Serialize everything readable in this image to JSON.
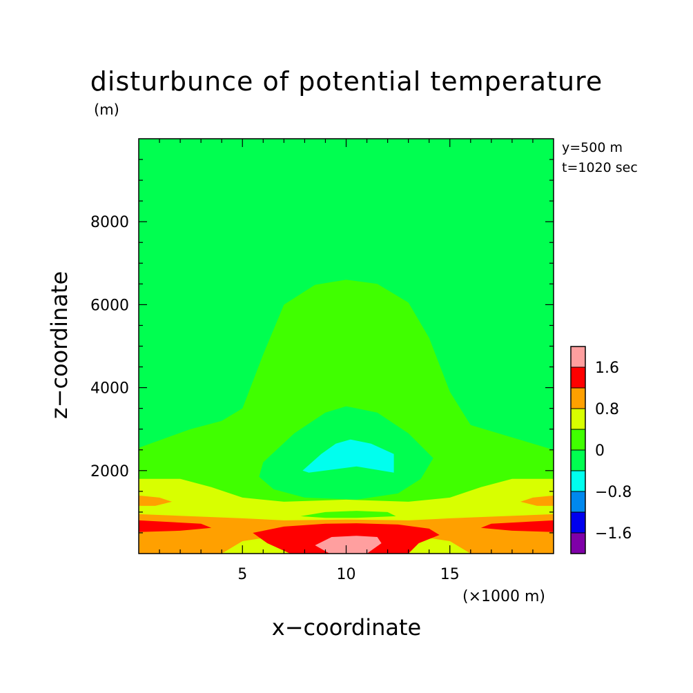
{
  "chart_data": {
    "type": "heatmap",
    "title": "disturbunce of potential temperature",
    "z_unit": "(m)",
    "xlabel": "x−coordinate",
    "ylabel": "z−coordinate",
    "x_unit": "(×1000 m)",
    "annotations": [
      "y=500 m",
      "t=1020 sec"
    ],
    "xlim": [
      0,
      20
    ],
    "ylim": [
      0,
      10000
    ],
    "x_ticks": [
      5,
      10,
      15
    ],
    "y_ticks": [
      2000,
      4000,
      6000,
      8000
    ],
    "colorbar": {
      "levels": [
        -2.0,
        -1.6,
        -1.2,
        -0.8,
        -0.4,
        0,
        0.4,
        0.8,
        1.2,
        1.6,
        2.0
      ],
      "colors": [
        "#7f00a8",
        "#0000ee",
        "#0088ee",
        "#00ffee",
        "#00ff50",
        "#40ff00",
        "#d8ff00",
        "#ffa000",
        "#ff0000",
        "#ff9f9f"
      ],
      "tick_labels": [
        "−1.6",
        "−0.8",
        "0",
        "0.8",
        "1.6"
      ],
      "tick_values": [
        -1.6,
        -0.8,
        0,
        0.8,
        1.6
      ]
    },
    "regions": [
      {
        "name": "background",
        "level_range": [
          0,
          0.4
        ],
        "color": "#00ff50"
      },
      {
        "name": "dome",
        "level_range": [
          0.4,
          0.8
        ],
        "color": "#40ff00",
        "points": [
          [
            0,
            0
          ],
          [
            0,
            2550
          ],
          [
            2.5,
            3000
          ],
          [
            4,
            3200
          ],
          [
            5,
            3500
          ],
          [
            6,
            4800
          ],
          [
            7,
            6000
          ],
          [
            8.5,
            6480
          ],
          [
            10,
            6600
          ],
          [
            11.5,
            6500
          ],
          [
            13,
            6050
          ],
          [
            14,
            5200
          ],
          [
            15,
            3900
          ],
          [
            16,
            3100
          ],
          [
            18,
            2800
          ],
          [
            20,
            2500
          ],
          [
            20,
            0
          ]
        ]
      },
      {
        "name": "inner-green",
        "level_range": [
          0,
          0.4
        ],
        "color": "#00ff50",
        "points": [
          [
            6,
            2200
          ],
          [
            7.5,
            2900
          ],
          [
            9,
            3400
          ],
          [
            10,
            3550
          ],
          [
            11.5,
            3400
          ],
          [
            13,
            2900
          ],
          [
            14.2,
            2300
          ],
          [
            13.6,
            1800
          ],
          [
            12.5,
            1450
          ],
          [
            10.5,
            1300
          ],
          [
            8,
            1350
          ],
          [
            6.5,
            1550
          ],
          [
            5.8,
            1850
          ]
        ]
      },
      {
        "name": "cold-core",
        "level_range": [
          -0.8,
          -0.4
        ],
        "color": "#00ffee",
        "points": [
          [
            7.9,
            2000
          ],
          [
            8.8,
            2400
          ],
          [
            9.5,
            2650
          ],
          [
            10.2,
            2750
          ],
          [
            11.2,
            2650
          ],
          [
            12.3,
            2400
          ],
          [
            12.3,
            1950
          ],
          [
            10.5,
            2100
          ],
          [
            8.2,
            1950
          ]
        ]
      },
      {
        "name": "yellow-band",
        "level_range": [
          0.8,
          1.2
        ],
        "color": "#d8ff00",
        "points": [
          [
            0,
            0
          ],
          [
            0,
            1800
          ],
          [
            2,
            1800
          ],
          [
            3.5,
            1600
          ],
          [
            5,
            1350
          ],
          [
            7,
            1250
          ],
          [
            10,
            1300
          ],
          [
            13,
            1250
          ],
          [
            15,
            1350
          ],
          [
            16.5,
            1600
          ],
          [
            18,
            1800
          ],
          [
            20,
            1800
          ],
          [
            20,
            0
          ]
        ]
      },
      {
        "name": "orange-band",
        "level_range": [
          1.2,
          1.6
        ],
        "color": "#ffa000",
        "points": [
          [
            0,
            0
          ],
          [
            0,
            950
          ],
          [
            2.5,
            900
          ],
          [
            5,
            850
          ],
          [
            7,
            800
          ],
          [
            10,
            820
          ],
          [
            13,
            800
          ],
          [
            15,
            850
          ],
          [
            17.5,
            900
          ],
          [
            20,
            950
          ],
          [
            20,
            0
          ],
          [
            16,
            0
          ],
          [
            15,
            300
          ],
          [
            13,
            450
          ],
          [
            10,
            450
          ],
          [
            7,
            450
          ],
          [
            5,
            300
          ],
          [
            4,
            0
          ]
        ]
      },
      {
        "name": "orange-left-lobe",
        "level_range": [
          1.2,
          1.6
        ],
        "color": "#ffa000",
        "points": [
          [
            0,
            1400
          ],
          [
            1,
            1350
          ],
          [
            1.6,
            1250
          ],
          [
            0.8,
            1150
          ],
          [
            0,
            1150
          ]
        ]
      },
      {
        "name": "orange-right-lobe",
        "level_range": [
          1.2,
          1.6
        ],
        "color": "#ffa000",
        "points": [
          [
            20,
            1400
          ],
          [
            19,
            1350
          ],
          [
            18.4,
            1250
          ],
          [
            19.2,
            1150
          ],
          [
            20,
            1150
          ]
        ]
      },
      {
        "name": "red-left-strip",
        "level_range": [
          1.6,
          2.0
        ],
        "color": "#ff0000",
        "points": [
          [
            0,
            800
          ],
          [
            3,
            720
          ],
          [
            3.5,
            620
          ],
          [
            2,
            550
          ],
          [
            0,
            520
          ]
        ]
      },
      {
        "name": "red-right-strip",
        "level_range": [
          1.6,
          2.0
        ],
        "color": "#ff0000",
        "points": [
          [
            20,
            800
          ],
          [
            17,
            720
          ],
          [
            16.5,
            620
          ],
          [
            18,
            550
          ],
          [
            20,
            520
          ]
        ]
      },
      {
        "name": "red-core",
        "level_range": [
          1.6,
          2.0
        ],
        "color": "#ff0000",
        "points": [
          [
            7.3,
            0
          ],
          [
            6.2,
            250
          ],
          [
            5.5,
            500
          ],
          [
            7,
            650
          ],
          [
            9,
            720
          ],
          [
            10.5,
            730
          ],
          [
            12.5,
            700
          ],
          [
            14,
            600
          ],
          [
            14.5,
            450
          ],
          [
            13.5,
            250
          ],
          [
            13,
            0
          ]
        ]
      },
      {
        "name": "yellow-inner-ridge",
        "level_range": [
          0.8,
          1.2
        ],
        "color": "#d8ff00",
        "points": [
          [
            8.8,
            1100
          ],
          [
            10,
            1200
          ],
          [
            11.2,
            1120
          ],
          [
            10.5,
            1050
          ],
          [
            9.5,
            1050
          ]
        ]
      },
      {
        "name": "green-inner-band",
        "level_range": [
          0.4,
          0.8
        ],
        "color": "#40ff00",
        "points": [
          [
            7.8,
            900
          ],
          [
            9,
            1000
          ],
          [
            10.5,
            1030
          ],
          [
            12,
            1000
          ],
          [
            12.4,
            900
          ],
          [
            10.5,
            860
          ],
          [
            9,
            860
          ]
        ]
      },
      {
        "name": "pink-core",
        "level_range": [
          2.0,
          2.4
        ],
        "color": "#ff9f9f",
        "points": [
          [
            9.2,
            0
          ],
          [
            8.5,
            200
          ],
          [
            9.3,
            400
          ],
          [
            10.5,
            430
          ],
          [
            11.5,
            400
          ],
          [
            11.7,
            250
          ],
          [
            11,
            0
          ]
        ]
      }
    ]
  }
}
